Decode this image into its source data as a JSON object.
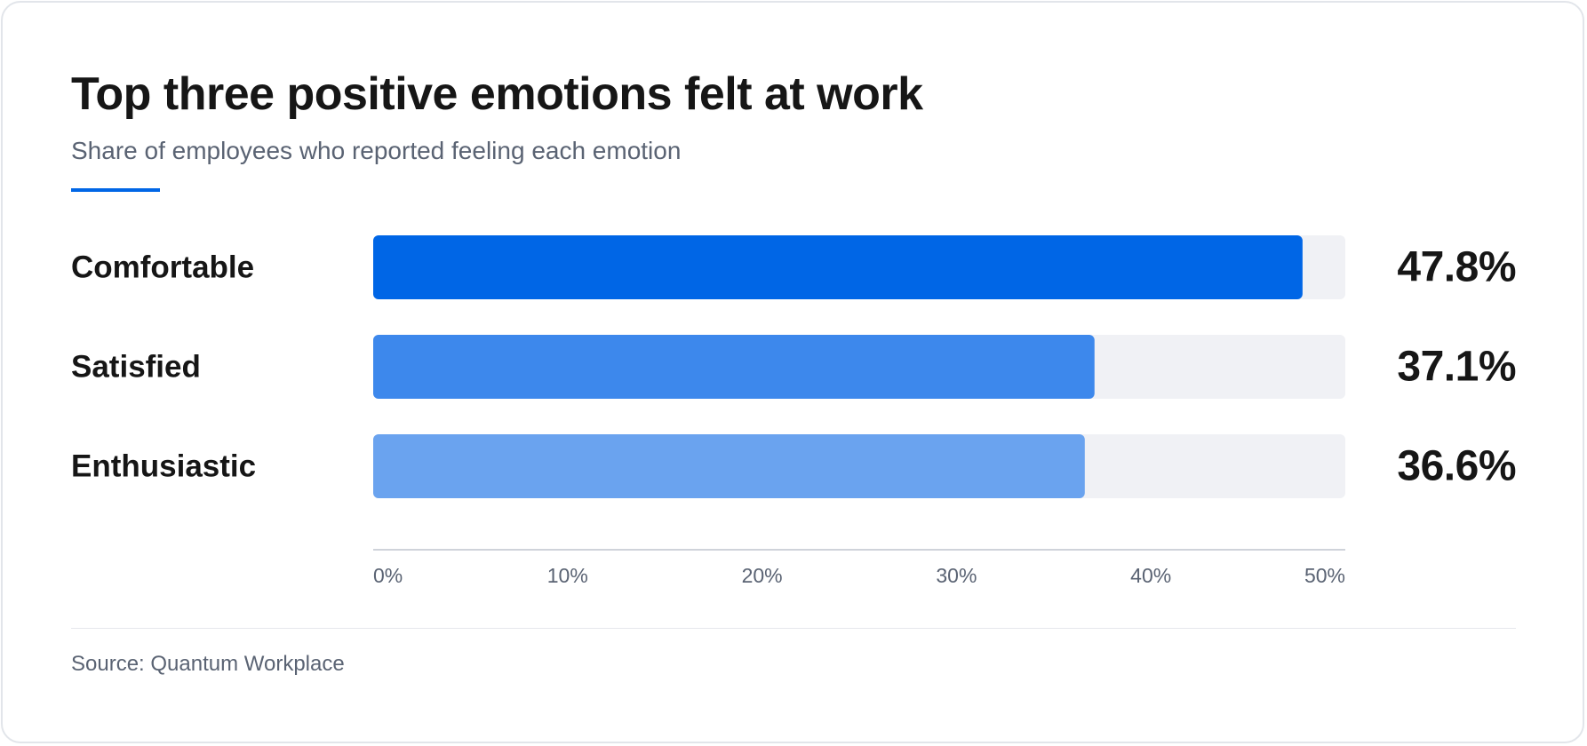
{
  "header": {
    "title": "Top three positive emotions felt at work",
    "subtitle": "Share of employees who reported feeling each emotion"
  },
  "footer": {
    "source": "Source: Quantum Workplace"
  },
  "colors": {
    "bar_1": "#0066e6",
    "bar_2": "#3d88ec",
    "bar_3": "#6aa3ef",
    "track": "#f0f1f5",
    "axis": "#cfd3da"
  },
  "chart_data": {
    "type": "bar",
    "orientation": "horizontal",
    "title": "Top three positive emotions felt at work",
    "subtitle": "Share of employees who reported feeling each emotion",
    "categories": [
      "Comfortable",
      "Satisfied",
      "Enthusiastic"
    ],
    "values": [
      47.8,
      37.1,
      36.6
    ],
    "value_labels": [
      "47.8%",
      "37.1%",
      "36.6%"
    ],
    "xlim": [
      0,
      50
    ],
    "xticks": [
      0,
      10,
      20,
      30,
      40,
      50
    ],
    "xtick_labels": [
      "0%",
      "10%",
      "20%",
      "30%",
      "40%",
      "50%"
    ],
    "xlabel": "",
    "ylabel": "",
    "grid": false,
    "legend": "none"
  }
}
